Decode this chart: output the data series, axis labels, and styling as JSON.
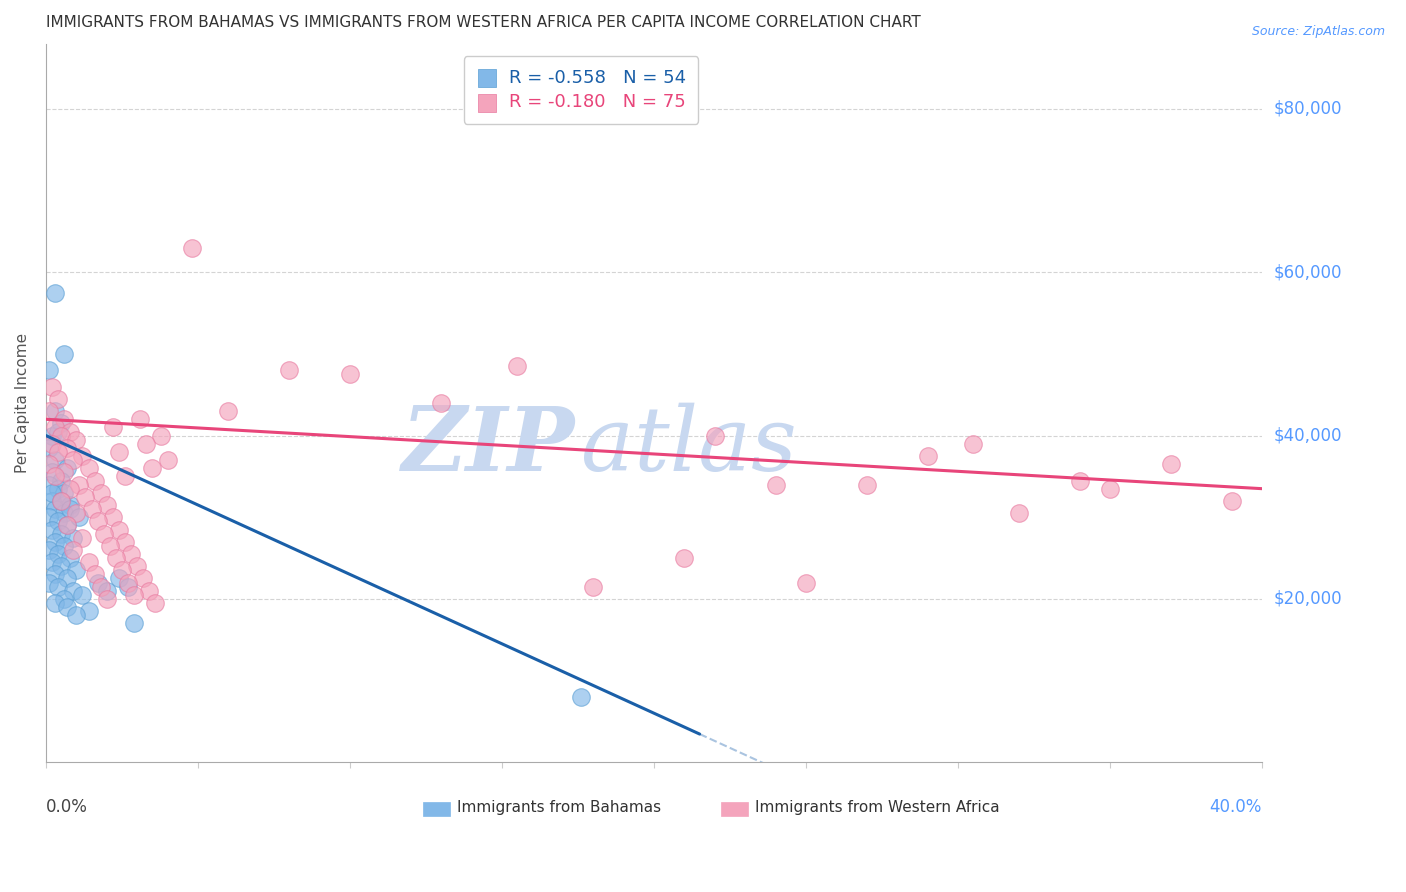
{
  "title": "IMMIGRANTS FROM BAHAMAS VS IMMIGRANTS FROM WESTERN AFRICA PER CAPITA INCOME CORRELATION CHART",
  "source": "Source: ZipAtlas.com",
  "ylabel": "Per Capita Income",
  "ytick_labels": [
    "$20,000",
    "$40,000",
    "$60,000",
    "$80,000"
  ],
  "ytick_values": [
    20000,
    40000,
    60000,
    80000
  ],
  "xlim": [
    0.0,
    0.4
  ],
  "ylim": [
    0,
    88000
  ],
  "legend_bahamas_R": "-0.558",
  "legend_bahamas_N": "54",
  "legend_wa_R": "-0.180",
  "legend_wa_N": "75",
  "bahamas_color": "#82b8e8",
  "bahamas_edge": "#5b9fd4",
  "wa_color": "#f4a4bc",
  "wa_edge": "#e87aa0",
  "bahamas_line_color": "#1a5fa8",
  "wa_line_color": "#e8457a",
  "dashed_line_color": "#aac4e0",
  "background_color": "#ffffff",
  "grid_color": "#d0d0d0",
  "title_color": "#333333",
  "source_color": "#5599ff",
  "ytick_color": "#5599ff",
  "watermark_zip": "ZIP",
  "watermark_atlas": "atlas",
  "watermark_color_zip": "#c8d8f0",
  "watermark_color_atlas": "#c8d8f0",
  "bahamas_x": [
    0.003,
    0.006,
    0.001,
    0.003,
    0.005,
    0.002,
    0.004,
    0.001,
    0.003,
    0.007,
    0.002,
    0.005,
    0.001,
    0.004,
    0.006,
    0.002,
    0.008,
    0.003,
    0.006,
    0.001,
    0.004,
    0.007,
    0.002,
    0.005,
    0.009,
    0.003,
    0.006,
    0.001,
    0.004,
    0.008,
    0.002,
    0.005,
    0.01,
    0.003,
    0.007,
    0.001,
    0.004,
    0.009,
    0.012,
    0.006,
    0.002,
    0.005,
    0.008,
    0.011,
    0.003,
    0.007,
    0.014,
    0.01,
    0.017,
    0.02,
    0.024,
    0.027,
    0.176,
    0.029
  ],
  "bahamas_y": [
    57500,
    50000,
    48000,
    43000,
    41500,
    40000,
    40500,
    38500,
    37000,
    36000,
    35500,
    34500,
    34000,
    33500,
    33000,
    32000,
    31500,
    31000,
    30500,
    30000,
    29500,
    29000,
    28500,
    28000,
    27500,
    27000,
    26500,
    26000,
    25500,
    25000,
    24500,
    24000,
    23500,
    23000,
    22500,
    22000,
    21500,
    21000,
    20500,
    20000,
    33000,
    32000,
    31000,
    30000,
    19500,
    19000,
    18500,
    18000,
    22000,
    21000,
    22500,
    21500,
    8000,
    17000
  ],
  "wa_x": [
    0.002,
    0.004,
    0.001,
    0.006,
    0.003,
    0.008,
    0.005,
    0.01,
    0.002,
    0.007,
    0.004,
    0.012,
    0.009,
    0.001,
    0.014,
    0.006,
    0.003,
    0.016,
    0.011,
    0.008,
    0.018,
    0.013,
    0.005,
    0.02,
    0.015,
    0.01,
    0.022,
    0.017,
    0.007,
    0.024,
    0.019,
    0.012,
    0.026,
    0.021,
    0.009,
    0.028,
    0.023,
    0.014,
    0.03,
    0.025,
    0.016,
    0.032,
    0.027,
    0.018,
    0.034,
    0.029,
    0.02,
    0.036,
    0.031,
    0.022,
    0.038,
    0.033,
    0.024,
    0.04,
    0.035,
    0.026,
    0.06,
    0.08,
    0.1,
    0.13,
    0.155,
    0.18,
    0.21,
    0.24,
    0.29,
    0.34,
    0.37,
    0.305,
    0.27,
    0.39,
    0.35,
    0.25,
    0.048,
    0.22,
    0.32
  ],
  "wa_y": [
    46000,
    44500,
    43000,
    42000,
    41000,
    40500,
    40000,
    39500,
    39000,
    38500,
    38000,
    37500,
    37000,
    36500,
    36000,
    35500,
    35000,
    34500,
    34000,
    33500,
    33000,
    32500,
    32000,
    31500,
    31000,
    30500,
    30000,
    29500,
    29000,
    28500,
    28000,
    27500,
    27000,
    26500,
    26000,
    25500,
    25000,
    24500,
    24000,
    23500,
    23000,
    22500,
    22000,
    21500,
    21000,
    20500,
    20000,
    19500,
    42000,
    41000,
    40000,
    39000,
    38000,
    37000,
    36000,
    35000,
    43000,
    48000,
    47500,
    44000,
    48500,
    21500,
    25000,
    34000,
    37500,
    34500,
    36500,
    39000,
    34000,
    32000,
    33500,
    22000,
    63000,
    40000,
    30500
  ]
}
